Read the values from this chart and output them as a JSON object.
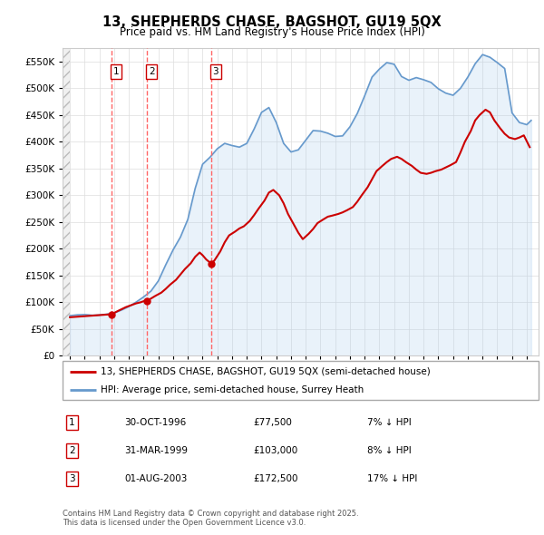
{
  "title": "13, SHEPHERDS CHASE, BAGSHOT, GU19 5QX",
  "subtitle": "Price paid vs. HM Land Registry's House Price Index (HPI)",
  "legend_line1": "13, SHEPHERDS CHASE, BAGSHOT, GU19 5QX (semi-detached house)",
  "legend_line2": "HPI: Average price, semi-detached house, Surrey Heath",
  "footnote": "Contains HM Land Registry data © Crown copyright and database right 2025.\nThis data is licensed under the Open Government Licence v3.0.",
  "transactions": [
    {
      "label": "1",
      "date": "30-OCT-1996",
      "price": 77500,
      "pct": "7%",
      "x": 1996.83
    },
    {
      "label": "2",
      "date": "31-MAR-1999",
      "price": 103000,
      "pct": "8%",
      "x": 1999.25
    },
    {
      "label": "3",
      "date": "01-AUG-2003",
      "price": 172500,
      "pct": "17%",
      "x": 2003.58
    }
  ],
  "price_color": "#cc0000",
  "hpi_color": "#6699cc",
  "hpi_color_fill": "#aaccee",
  "vline_color": "#ff6666",
  "ylim": [
    0,
    575000
  ],
  "yticks": [
    0,
    50000,
    100000,
    150000,
    200000,
    250000,
    300000,
    350000,
    400000,
    450000,
    500000,
    550000
  ],
  "xlim_left": 1993.5,
  "xlim_right": 2025.8,
  "hpi_years": [
    1994.0,
    1994.5,
    1995.0,
    1995.5,
    1996.0,
    1996.5,
    1997.0,
    1997.5,
    1998.0,
    1998.5,
    1999.0,
    1999.5,
    2000.0,
    2000.5,
    2001.0,
    2001.5,
    2002.0,
    2002.5,
    2003.0,
    2003.5,
    2004.0,
    2004.5,
    2005.0,
    2005.5,
    2006.0,
    2006.5,
    2007.0,
    2007.5,
    2008.0,
    2008.5,
    2009.0,
    2009.5,
    2010.0,
    2010.5,
    2011.0,
    2011.5,
    2012.0,
    2012.5,
    2013.0,
    2013.5,
    2014.0,
    2014.5,
    2015.0,
    2015.5,
    2016.0,
    2016.5,
    2017.0,
    2017.5,
    2018.0,
    2018.5,
    2019.0,
    2019.5,
    2020.0,
    2020.5,
    2021.0,
    2021.5,
    2022.0,
    2022.5,
    2023.0,
    2023.5,
    2024.0,
    2024.5,
    2025.0,
    2025.3
  ],
  "hpi_values": [
    75000,
    76500,
    77000,
    75800,
    76200,
    77800,
    80000,
    85500,
    92000,
    100500,
    110000,
    121000,
    140000,
    170000,
    198000,
    222000,
    255000,
    313000,
    358000,
    371000,
    387000,
    397000,
    393000,
    390000,
    397000,
    424000,
    455000,
    464000,
    436000,
    397000,
    381000,
    385000,
    403000,
    421000,
    420000,
    416000,
    410000,
    411000,
    428000,
    453000,
    486000,
    521000,
    536000,
    548000,
    545000,
    522000,
    515000,
    520000,
    516000,
    511000,
    499000,
    491000,
    487000,
    500000,
    521000,
    546000,
    563000,
    558000,
    548000,
    537000,
    454000,
    436000,
    432000,
    440000
  ],
  "price_years": [
    1994.0,
    1994.5,
    1995.0,
    1995.5,
    1996.0,
    1996.5,
    1996.83,
    1997.2,
    1997.5,
    1997.8,
    1998.2,
    1998.5,
    1998.8,
    1999.0,
    1999.25,
    1999.5,
    1999.8,
    2000.2,
    2000.5,
    2000.8,
    2001.2,
    2001.5,
    2001.8,
    2002.2,
    2002.5,
    2002.8,
    2003.0,
    2003.25,
    2003.58,
    2003.8,
    2004.2,
    2004.5,
    2004.8,
    2005.2,
    2005.5,
    2005.8,
    2006.2,
    2006.5,
    2006.8,
    2007.2,
    2007.5,
    2007.8,
    2008.2,
    2008.5,
    2008.8,
    2009.2,
    2009.5,
    2009.8,
    2010.2,
    2010.5,
    2010.8,
    2011.2,
    2011.5,
    2011.8,
    2012.2,
    2012.5,
    2012.8,
    2013.2,
    2013.5,
    2013.8,
    2014.2,
    2014.5,
    2014.8,
    2015.2,
    2015.5,
    2015.8,
    2016.2,
    2016.5,
    2016.8,
    2017.2,
    2017.5,
    2017.8,
    2018.2,
    2018.5,
    2018.8,
    2019.2,
    2019.5,
    2019.8,
    2020.2,
    2020.5,
    2020.8,
    2021.2,
    2021.5,
    2021.8,
    2022.2,
    2022.5,
    2022.8,
    2023.2,
    2023.5,
    2023.8,
    2024.2,
    2024.5,
    2024.8,
    2025.2
  ],
  "price_values": [
    72000,
    73000,
    74000,
    75000,
    76000,
    77000,
    77500,
    83000,
    87000,
    91000,
    95000,
    98000,
    100000,
    102000,
    103000,
    107000,
    112000,
    118000,
    125000,
    133000,
    142000,
    152000,
    162000,
    173000,
    185000,
    193000,
    188000,
    180000,
    172500,
    178000,
    195000,
    212000,
    225000,
    232000,
    238000,
    242000,
    252000,
    263000,
    275000,
    290000,
    305000,
    310000,
    300000,
    285000,
    265000,
    245000,
    230000,
    218000,
    228000,
    237000,
    248000,
    255000,
    260000,
    262000,
    265000,
    268000,
    272000,
    278000,
    288000,
    300000,
    315000,
    330000,
    345000,
    355000,
    362000,
    368000,
    372000,
    368000,
    362000,
    355000,
    348000,
    342000,
    340000,
    342000,
    345000,
    348000,
    352000,
    356000,
    362000,
    380000,
    400000,
    420000,
    440000,
    450000,
    460000,
    455000,
    440000,
    425000,
    415000,
    408000,
    405000,
    408000,
    412000,
    390000
  ]
}
